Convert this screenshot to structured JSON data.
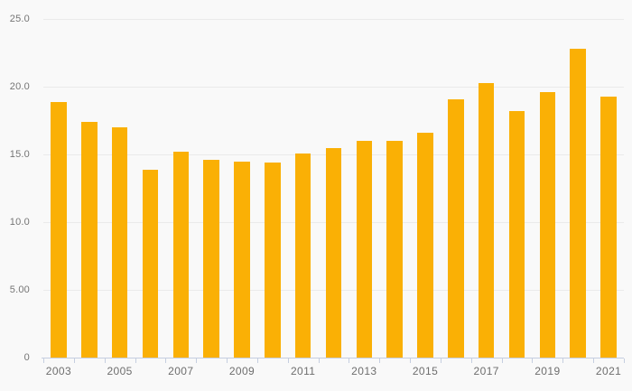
{
  "chart_data": {
    "type": "bar",
    "title": "",
    "xlabel": "",
    "ylabel": "",
    "categories": [
      "2003",
      "2004",
      "2005",
      "2006",
      "2007",
      "2008",
      "2009",
      "2010",
      "2011",
      "2012",
      "2013",
      "2014",
      "2015",
      "2016",
      "2017",
      "2018",
      "2019",
      "2020",
      "2021"
    ],
    "values": [
      18.9,
      17.4,
      17.0,
      13.9,
      15.2,
      14.6,
      14.5,
      14.4,
      15.1,
      15.5,
      16.0,
      16.0,
      16.6,
      19.1,
      20.3,
      18.2,
      19.6,
      22.8,
      19.3
    ],
    "ylim": [
      0,
      25
    ],
    "y_ticks": [
      {
        "value": 0,
        "label": "0"
      },
      {
        "value": 5,
        "label": "5.00"
      },
      {
        "value": 10,
        "label": "10.0"
      },
      {
        "value": 15,
        "label": "15.0"
      },
      {
        "value": 20,
        "label": "20.0"
      },
      {
        "value": 25,
        "label": "25.0"
      }
    ],
    "x_tick_labels_shown": [
      "2003",
      "2005",
      "2007",
      "2009",
      "2011",
      "2013",
      "2015",
      "2017",
      "2019",
      "2021"
    ],
    "grid": "horizontal",
    "legend": "none",
    "colors": {
      "bar": "#FAB005",
      "background": "#F9F9F9",
      "gridline": "#EAEAEA",
      "axis_line": "#C5CEE0",
      "y_label_text": "#757575",
      "x_label_text": "#6E6E6E"
    }
  }
}
